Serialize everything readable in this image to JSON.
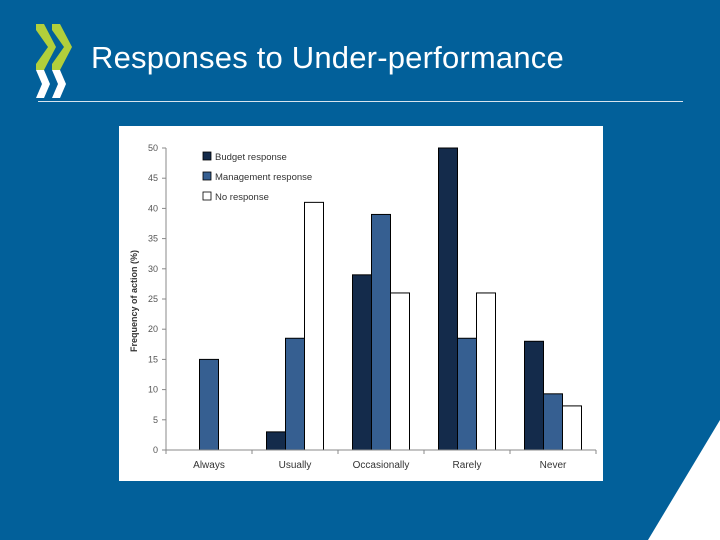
{
  "slide": {
    "title": "Responses to Under-performance"
  },
  "colors": {
    "background": "#02609a",
    "logo_green": "#b2cf3b"
  },
  "chart_data": {
    "type": "bar",
    "title": "",
    "xlabel": "",
    "ylabel": "Frequency of action (%)",
    "ylim": [
      0,
      50
    ],
    "yticks": [
      0,
      5,
      10,
      15,
      20,
      25,
      30,
      35,
      40,
      45,
      50
    ],
    "categories": [
      "Always",
      "Usually",
      "Occasionally",
      "Rarely",
      "Never"
    ],
    "legend_position": "top-left",
    "grid": false,
    "series": [
      {
        "name": "Budget response",
        "color": "#142b4b",
        "values": [
          0,
          3,
          29,
          50,
          18
        ]
      },
      {
        "name": "Management response",
        "color": "#365f91",
        "values": [
          15,
          18.5,
          39,
          18.5,
          9.3
        ]
      },
      {
        "name": "No response",
        "color": "#ffffff",
        "values": [
          0,
          41,
          26,
          26,
          7.3
        ]
      }
    ]
  }
}
